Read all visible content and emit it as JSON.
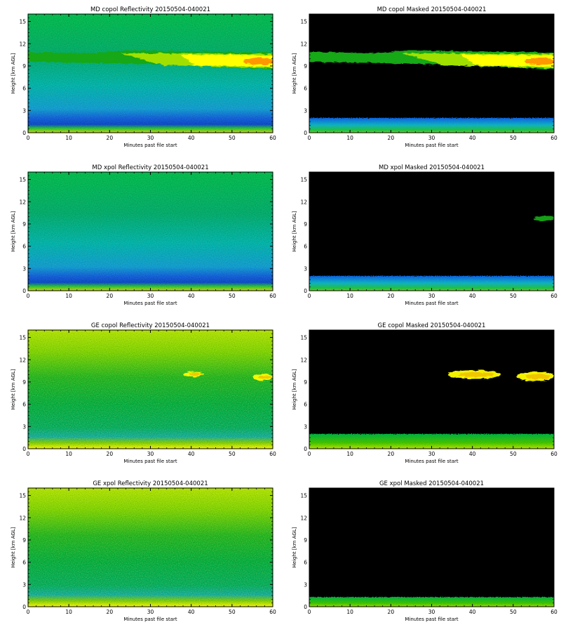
{
  "chart_data": [
    {
      "type": "heatmap",
      "title": "MD copol Reflectivity 20150504-040021",
      "xlabel": "Minutes past file start",
      "ylabel": "Height [km AGL]",
      "xlim": [
        0,
        60
      ],
      "ylim": [
        0,
        16
      ],
      "xticks": [
        "0",
        "10",
        "20",
        "30",
        "40",
        "50",
        "60"
      ],
      "yticks": [
        "0",
        "3",
        "6",
        "9",
        "12",
        "15"
      ],
      "masked": false,
      "colors": {
        "background": "#00c050",
        "low_level": "#1060e0",
        "cloud_core": "#ffff00",
        "cloud_peak": "#ff8c00"
      },
      "features": [
        {
          "kind": "cloud_layer",
          "x_start": 0,
          "x_end": 60,
          "height_top": 11,
          "height_bottom": 9,
          "peak_region": [
            50,
            60
          ]
        }
      ]
    },
    {
      "type": "heatmap",
      "title": "MD copol Masked 20150504-040021",
      "xlabel": "Minutes past file start",
      "ylabel": "Height [km AGL]",
      "xlim": [
        0,
        60
      ],
      "ylim": [
        0,
        16
      ],
      "xticks": [
        "0",
        "10",
        "20",
        "30",
        "40",
        "50",
        "60"
      ],
      "yticks": [
        "0",
        "3",
        "6",
        "9",
        "12",
        "15"
      ],
      "masked": true,
      "colors": {
        "background": "#000000",
        "surface": "#1060e0",
        "cloud_core": "#ffff00",
        "cloud_peak": "#ff8c00"
      },
      "features": [
        {
          "kind": "cloud_layer",
          "x_start": 0,
          "x_end": 60,
          "height_top": 11,
          "height_bottom": 9,
          "peak_region": [
            50,
            60
          ]
        },
        {
          "kind": "surface_layer",
          "height_top": 2
        }
      ]
    },
    {
      "type": "heatmap",
      "title": "MD xpol Reflectivity 20150504-040021",
      "xlabel": "Minutes past file start",
      "ylabel": "Height [km AGL]",
      "xlim": [
        0,
        60
      ],
      "ylim": [
        0,
        16
      ],
      "xticks": [
        "0",
        "10",
        "20",
        "30",
        "40",
        "50",
        "60"
      ],
      "yticks": [
        "0",
        "3",
        "6",
        "9",
        "12",
        "15"
      ],
      "masked": false,
      "colors": {
        "background": "#00c050",
        "low_level": "#1060e0"
      },
      "features": []
    },
    {
      "type": "heatmap",
      "title": "MD xpol Masked 20150504-040021",
      "xlabel": "Minutes past file start",
      "ylabel": "Height [km AGL]",
      "xlim": [
        0,
        60
      ],
      "ylim": [
        0,
        16
      ],
      "xticks": [
        "0",
        "10",
        "20",
        "30",
        "40",
        "50",
        "60"
      ],
      "yticks": [
        "0",
        "3",
        "6",
        "9",
        "12",
        "15"
      ],
      "masked": true,
      "colors": {
        "background": "#000000",
        "surface": "#1060e0"
      },
      "features": [
        {
          "kind": "cloud_patch",
          "x_start": 55,
          "x_end": 60,
          "height_top": 10,
          "height_bottom": 9.5
        },
        {
          "kind": "surface_layer",
          "height_top": 2
        }
      ]
    },
    {
      "type": "heatmap",
      "title": "GE copol Reflectivity 20150504-040021",
      "xlabel": "Minutes past file start",
      "ylabel": "Height [km AGL]",
      "xlim": [
        0,
        60
      ],
      "ylim": [
        0,
        16
      ],
      "xticks": [
        "0",
        "10",
        "20",
        "30",
        "40",
        "50",
        "60"
      ],
      "yticks": [
        "0",
        "3",
        "6",
        "9",
        "12",
        "15"
      ],
      "masked": false,
      "colors": {
        "background": "#b4e800",
        "mid_level": "#00b040",
        "cloud_core": "#ffff00"
      },
      "features": [
        {
          "kind": "cloud_patch",
          "x_start": 38,
          "x_end": 43,
          "height_top": 10.3,
          "height_bottom": 9.8
        },
        {
          "kind": "cloud_patch",
          "x_start": 55,
          "x_end": 60,
          "height_top": 10,
          "height_bottom": 9.3
        }
      ]
    },
    {
      "type": "heatmap",
      "title": "GE copol Masked 20150504-040021",
      "xlabel": "Minutes past file start",
      "ylabel": "Height [km AGL]",
      "xlim": [
        0,
        60
      ],
      "ylim": [
        0,
        16
      ],
      "xticks": [
        "0",
        "10",
        "20",
        "30",
        "40",
        "50",
        "60"
      ],
      "yticks": [
        "0",
        "3",
        "6",
        "9",
        "12",
        "15"
      ],
      "masked": true,
      "colors": {
        "background": "#000000",
        "surface": "#00b040",
        "cloud_core": "#ffff00"
      },
      "features": [
        {
          "kind": "cloud_patch",
          "x_start": 34,
          "x_end": 47,
          "height_top": 10.5,
          "height_bottom": 9.5
        },
        {
          "kind": "cloud_patch",
          "x_start": 51,
          "x_end": 60,
          "height_top": 10.3,
          "height_bottom": 9.2
        },
        {
          "kind": "surface_layer",
          "height_top": 2
        }
      ]
    },
    {
      "type": "heatmap",
      "title": "GE xpol Reflectivity 20150504-040021",
      "xlabel": "Minutes past file start",
      "ylabel": "Height [km AGL]",
      "xlim": [
        0,
        60
      ],
      "ylim": [
        0,
        16
      ],
      "xticks": [
        "0",
        "10",
        "20",
        "30",
        "40",
        "50",
        "60"
      ],
      "yticks": [
        "0",
        "3",
        "6",
        "9",
        "12",
        "15"
      ],
      "masked": false,
      "colors": {
        "background": "#b4e800",
        "mid_level": "#00b040"
      },
      "features": []
    },
    {
      "type": "heatmap",
      "title": "GE xpol Masked 20150504-040021",
      "xlabel": "Minutes past file start",
      "ylabel": "Height [km AGL]",
      "xlim": [
        0,
        60
      ],
      "ylim": [
        0,
        16
      ],
      "xticks": [
        "0",
        "10",
        "20",
        "30",
        "40",
        "50",
        "60"
      ],
      "yticks": [
        "0",
        "3",
        "6",
        "9",
        "12",
        "15"
      ],
      "masked": true,
      "colors": {
        "background": "#000000",
        "surface": "#00b040"
      },
      "features": [
        {
          "kind": "surface_layer",
          "height_top": 1.3
        }
      ]
    }
  ]
}
